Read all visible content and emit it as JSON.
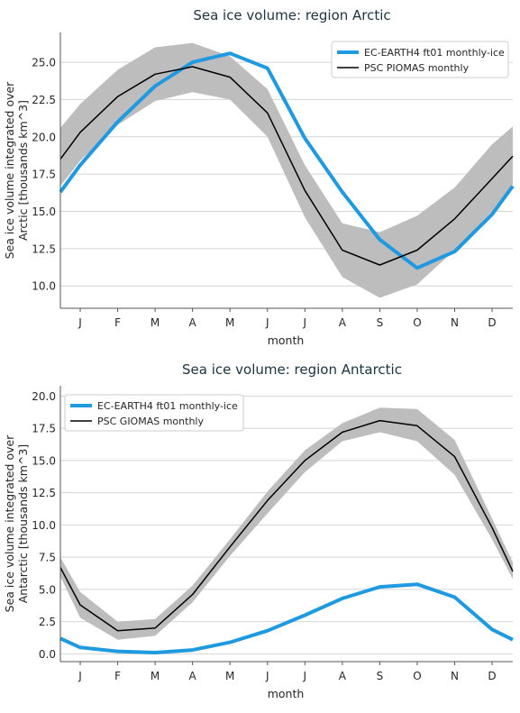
{
  "chart_data": [
    {
      "type": "line",
      "title": "Sea ice volume: region Arctic",
      "xlabel": "month",
      "ylabel_lines": [
        "Sea ice volume integrated over",
        "Arctic [thousands km^3]"
      ],
      "categories": [
        "J",
        "F",
        "M",
        "A",
        "M",
        "J",
        "J",
        "A",
        "S",
        "O",
        "N",
        "D"
      ],
      "ylim": [
        8.5,
        27.0
      ],
      "yticks": [
        10.0,
        12.5,
        15.0,
        17.5,
        20.0,
        22.5,
        25.0
      ],
      "grid": true,
      "legend_position": "top-right",
      "series": [
        {
          "name": "EC-EARTH4 ft01 monthly-ice",
          "color": "#1f9ae0",
          "values": [
            18.1,
            21.0,
            23.4,
            25.0,
            25.6,
            24.6,
            19.9,
            16.3,
            13.1,
            11.2,
            12.3,
            14.8
          ]
        },
        {
          "name": "PSC PIOMAS monthly",
          "color": "#000000",
          "values": [
            20.3,
            22.7,
            24.2,
            24.7,
            24.0,
            21.6,
            16.4,
            12.4,
            11.4,
            12.4,
            14.5,
            17.2
          ]
        }
      ],
      "band": {
        "color": "#bdbdbd",
        "lower": [
          18.4,
          20.8,
          22.4,
          23.0,
          22.5,
          20.0,
          14.6,
          10.6,
          9.2,
          10.1,
          12.4,
          15.0
        ],
        "upper": [
          22.2,
          24.5,
          26.0,
          26.3,
          25.4,
          23.2,
          18.1,
          14.2,
          13.6,
          14.7,
          16.6,
          19.5
        ]
      },
      "edge_left": {
        "blue": 16.3,
        "black": 18.5,
        "lower": 16.7,
        "upper": 20.6
      },
      "edge_right": {
        "blue": 16.7,
        "black": 18.7,
        "lower": 16.8,
        "upper": 20.7
      }
    },
    {
      "type": "line",
      "title": "Sea ice volume: region Antarctic",
      "xlabel": "month",
      "ylabel_lines": [
        "Sea ice volume integrated over",
        "Antarctic [thousands km^3]"
      ],
      "categories": [
        "J",
        "F",
        "M",
        "A",
        "M",
        "J",
        "J",
        "A",
        "S",
        "O",
        "N",
        "D"
      ],
      "ylim": [
        -0.6,
        20.8
      ],
      "yticks": [
        0.0,
        2.5,
        5.0,
        7.5,
        10.0,
        12.5,
        15.0,
        17.5,
        20.0
      ],
      "grid": true,
      "legend_position": "top-left",
      "series": [
        {
          "name": "EC-EARTH4 ft01 monthly-ice",
          "color": "#1f9ae0",
          "values": [
            0.5,
            0.2,
            0.1,
            0.3,
            0.9,
            1.8,
            3.0,
            4.3,
            5.2,
            5.4,
            4.4,
            1.9
          ]
        },
        {
          "name": "PSC GIOMAS monthly",
          "color": "#000000",
          "values": [
            3.8,
            1.8,
            2.0,
            4.6,
            8.3,
            11.9,
            15.0,
            17.2,
            18.1,
            17.7,
            15.3,
            9.8
          ]
        }
      ],
      "band": {
        "color": "#bdbdbd",
        "lower": [
          2.8,
          1.1,
          1.4,
          4.0,
          7.6,
          10.9,
          14.1,
          16.5,
          17.2,
          16.5,
          13.9,
          8.9
        ],
        "upper": [
          4.8,
          2.5,
          2.7,
          5.3,
          8.9,
          12.6,
          15.8,
          17.9,
          19.1,
          19.0,
          16.6,
          10.5
        ]
      },
      "edge_left": {
        "blue": 1.2,
        "black": 6.7,
        "lower": 6.0,
        "upper": 7.5
      },
      "edge_right": {
        "blue": 1.1,
        "black": 6.4,
        "lower": 5.8,
        "upper": 7.1
      }
    }
  ]
}
